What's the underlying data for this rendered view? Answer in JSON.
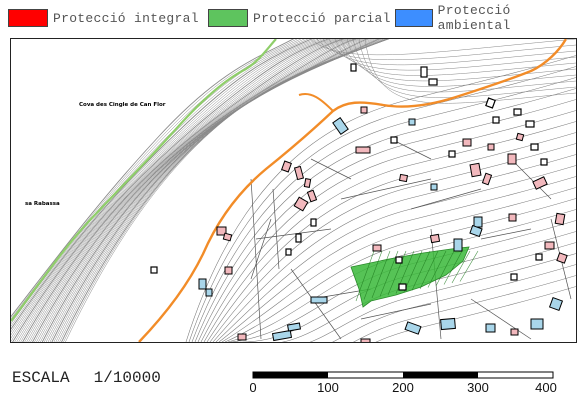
{
  "legend": {
    "items": [
      {
        "label": "Protecció integral",
        "color": "#ff0000"
      },
      {
        "label": "Protecció parcial",
        "color": "#5ec45e"
      },
      {
        "label": "Protecció ambiental",
        "color": "#3d8eff"
      }
    ]
  },
  "map": {
    "labels": {
      "cova": "Cova des Cingle de Can Flor",
      "rabassa": "sa Rabassa"
    },
    "colors": {
      "road": "#f28c28",
      "path": "#8fce6a",
      "contour": "#8a8a8a",
      "building_pink": "#f2b8bd",
      "building_blue": "#a9d6ea",
      "parcial_zone": "#38b838"
    }
  },
  "scale": {
    "prefix": "ESCALA",
    "value": "1/10000",
    "ticks": [
      "0",
      "100",
      "200",
      "300",
      "400"
    ]
  }
}
